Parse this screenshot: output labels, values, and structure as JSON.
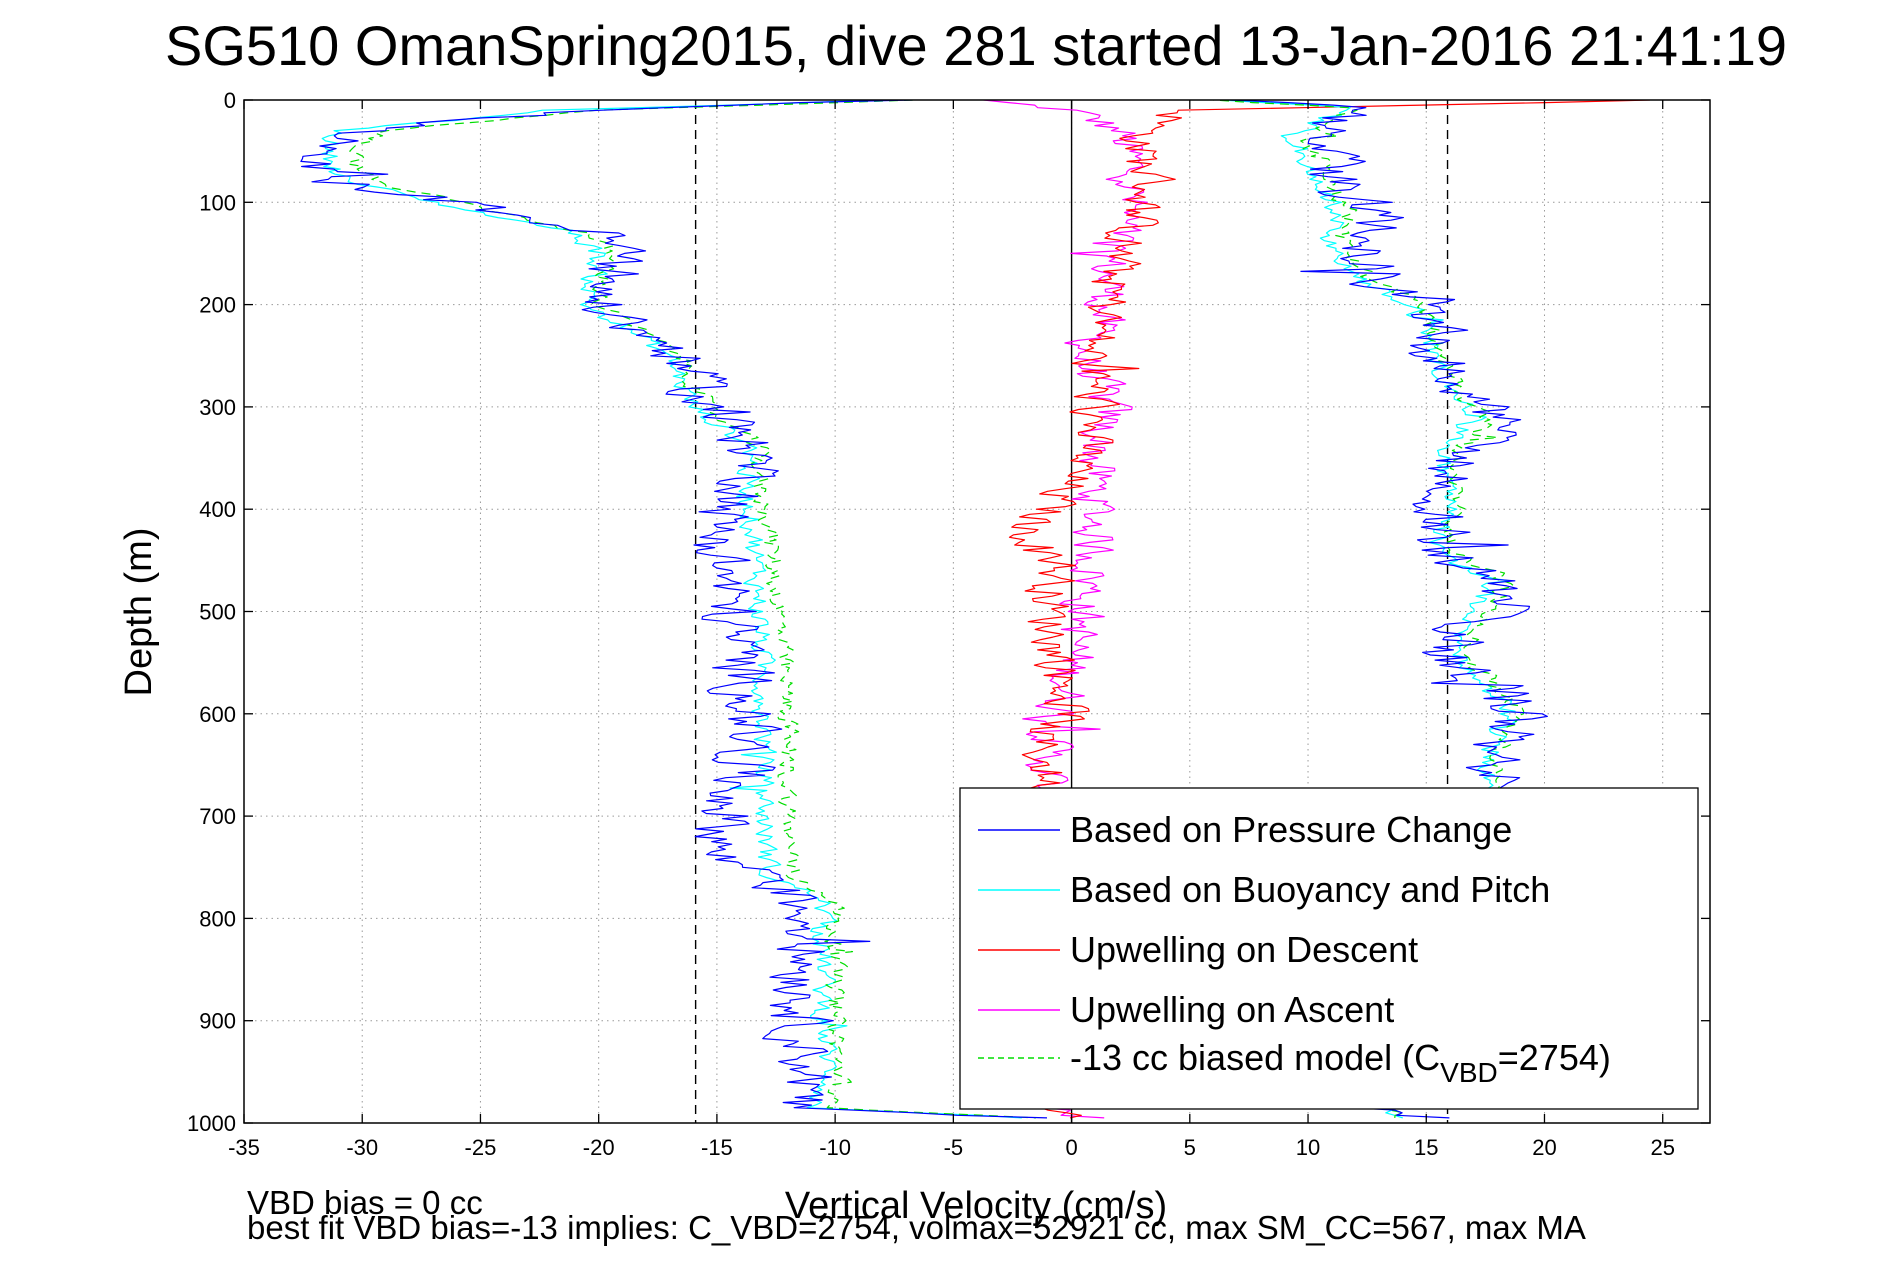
{
  "chart_data": {
    "type": "line",
    "title": "SG510 OmanSpring2015, dive 281 started 13-Jan-2016 21:41:19",
    "xlabel": "Vertical Velocity (cm/s)",
    "ylabel": "Depth (m)",
    "xlim": [
      -35,
      27
    ],
    "ylim": [
      1000,
      0
    ],
    "y_reversed": true,
    "grid": true,
    "xticks": [
      "-35",
      "-30",
      "-25",
      "-20",
      "-15",
      "-10",
      "-5",
      "0",
      "5",
      "10",
      "15",
      "20",
      "25"
    ],
    "yticks": [
      "0",
      "100",
      "200",
      "300",
      "400",
      "500",
      "600",
      "700",
      "800",
      "900",
      "1000"
    ],
    "reference_lines": [
      {
        "kind": "vertical",
        "x": -15.9,
        "style": "dashed",
        "color": "#000000"
      },
      {
        "kind": "vertical",
        "x": 0,
        "style": "solid",
        "color": "#000000"
      },
      {
        "kind": "vertical",
        "x": 15.9,
        "style": "dashed",
        "color": "#000000"
      }
    ],
    "legend_position": "bottom-right",
    "legend": [
      {
        "label": "Based on Pressure Change",
        "color": "#0000ff",
        "style": "solid"
      },
      {
        "label": "Based on Buoyancy and Pitch",
        "color": "#00ffff",
        "style": "solid"
      },
      {
        "label": "Upwelling on Descent",
        "color": "#ff0000",
        "style": "solid"
      },
      {
        "label": "Upwelling on Ascent",
        "color": "#ff00ff",
        "style": "solid"
      },
      {
        "label_prefix": "-13 cc biased model (C",
        "label_sub": "VBD",
        "label_suffix": "=2754)",
        "color": "#00dd00",
        "style": "dashed"
      }
    ],
    "series": [
      {
        "name": "Based on Pressure Change",
        "color": "#0000ff",
        "noise": 1.2,
        "descent": [
          [
            0,
            -7
          ],
          [
            10,
            -21
          ],
          [
            30,
            -30
          ],
          [
            50,
            -32.5
          ],
          [
            70,
            -32
          ],
          [
            80,
            -31
          ],
          [
            100,
            -26
          ],
          [
            130,
            -20
          ],
          [
            150,
            -19
          ],
          [
            200,
            -20
          ],
          [
            250,
            -16.5
          ],
          [
            300,
            -15.5
          ],
          [
            340,
            -13.3
          ],
          [
            380,
            -13.5
          ],
          [
            410,
            -15
          ],
          [
            500,
            -14.5
          ],
          [
            600,
            -13.5
          ],
          [
            700,
            -14.5
          ],
          [
            740,
            -15
          ],
          [
            760,
            -12
          ],
          [
            780,
            -11.8
          ],
          [
            800,
            -11
          ],
          [
            900,
            -11.5
          ],
          [
            960,
            -11
          ],
          [
            985,
            -12
          ],
          [
            995,
            -2
          ]
        ],
        "ascent": [
          [
            995,
            15
          ],
          [
            985,
            13
          ],
          [
            950,
            17.5
          ],
          [
            900,
            18
          ],
          [
            800,
            18.5
          ],
          [
            700,
            18
          ],
          [
            640,
            18
          ],
          [
            600,
            19
          ],
          [
            560,
            17
          ],
          [
            540,
            16
          ],
          [
            500,
            17.5
          ],
          [
            470,
            18.5
          ],
          [
            440,
            15.5
          ],
          [
            400,
            15.8
          ],
          [
            350,
            16
          ],
          [
            310,
            18.5
          ],
          [
            285,
            16.5
          ],
          [
            250,
            15.5
          ],
          [
            200,
            15.5
          ],
          [
            180,
            13
          ],
          [
            150,
            12
          ],
          [
            100,
            13
          ],
          [
            80,
            11
          ],
          [
            60,
            11
          ],
          [
            40,
            10
          ],
          [
            20,
            11
          ],
          [
            8,
            13
          ],
          [
            0,
            6
          ]
        ]
      },
      {
        "name": "Based on Buoyancy and Pitch",
        "color": "#00ffff",
        "noise": 0.45,
        "descent": [
          [
            0,
            -8
          ],
          [
            10,
            -22
          ],
          [
            30,
            -31
          ],
          [
            50,
            -31.5
          ],
          [
            70,
            -31
          ],
          [
            80,
            -30.5
          ],
          [
            100,
            -27
          ],
          [
            130,
            -21
          ],
          [
            150,
            -20
          ],
          [
            200,
            -20.5
          ],
          [
            250,
            -17
          ],
          [
            300,
            -16
          ],
          [
            340,
            -13.5
          ],
          [
            380,
            -13.8
          ],
          [
            410,
            -13.5
          ],
          [
            500,
            -13.2
          ],
          [
            600,
            -13
          ],
          [
            700,
            -13
          ],
          [
            760,
            -12.8
          ],
          [
            780,
            -10.5
          ],
          [
            800,
            -10.5
          ],
          [
            900,
            -10.5
          ],
          [
            960,
            -10.2
          ],
          [
            985,
            -11
          ],
          [
            995,
            -2
          ]
        ],
        "ascent": [
          [
            995,
            14
          ],
          [
            985,
            13.5
          ],
          [
            950,
            17.5
          ],
          [
            900,
            17.5
          ],
          [
            800,
            17.5
          ],
          [
            700,
            17.8
          ],
          [
            640,
            17.5
          ],
          [
            600,
            18.5
          ],
          [
            560,
            17
          ],
          [
            540,
            16
          ],
          [
            500,
            17
          ],
          [
            470,
            18
          ],
          [
            440,
            15.5
          ],
          [
            400,
            15.8
          ],
          [
            350,
            15.8
          ],
          [
            310,
            17
          ],
          [
            285,
            16
          ],
          [
            250,
            15.3
          ],
          [
            200,
            14.5
          ],
          [
            180,
            12.5
          ],
          [
            150,
            11
          ],
          [
            100,
            11
          ],
          [
            80,
            10.5
          ],
          [
            60,
            10
          ],
          [
            40,
            9.5
          ],
          [
            20,
            10.5
          ],
          [
            8,
            12
          ],
          [
            0,
            6
          ]
        ]
      },
      {
        "name": "-13 cc biased model",
        "color": "#00dd00",
        "dash": "9,6",
        "noise": 0.4,
        "descent": [
          [
            0,
            -7
          ],
          [
            10,
            -20
          ],
          [
            30,
            -29
          ],
          [
            50,
            -30.5
          ],
          [
            70,
            -30
          ],
          [
            80,
            -29.5
          ],
          [
            100,
            -26
          ],
          [
            130,
            -20.5
          ],
          [
            150,
            -19.5
          ],
          [
            200,
            -20
          ],
          [
            250,
            -16.5
          ],
          [
            300,
            -15.5
          ],
          [
            340,
            -13.2
          ],
          [
            380,
            -13.2
          ],
          [
            410,
            -12.8
          ],
          [
            500,
            -12.4
          ],
          [
            600,
            -12
          ],
          [
            700,
            -12
          ],
          [
            760,
            -11.8
          ],
          [
            780,
            -10
          ],
          [
            800,
            -10
          ],
          [
            900,
            -10
          ],
          [
            960,
            -9.8
          ],
          [
            985,
            -10.5
          ],
          [
            995,
            -1
          ]
        ],
        "ascent": [
          [
            995,
            14
          ],
          [
            985,
            13.5
          ],
          [
            950,
            18
          ],
          [
            900,
            18
          ],
          [
            800,
            18
          ],
          [
            700,
            18.3
          ],
          [
            640,
            18
          ],
          [
            600,
            19
          ],
          [
            560,
            17.5
          ],
          [
            540,
            16.5
          ],
          [
            500,
            17.5
          ],
          [
            470,
            18.5
          ],
          [
            440,
            16
          ],
          [
            400,
            16.2
          ],
          [
            350,
            16.2
          ],
          [
            310,
            17.5
          ],
          [
            285,
            16.5
          ],
          [
            250,
            15.7
          ],
          [
            200,
            15
          ],
          [
            180,
            13
          ],
          [
            150,
            11.5
          ],
          [
            100,
            11.5
          ],
          [
            80,
            11
          ],
          [
            60,
            10.5
          ],
          [
            40,
            10
          ],
          [
            20,
            11
          ],
          [
            8,
            12.5
          ],
          [
            0,
            6
          ]
        ]
      },
      {
        "name": "Upwelling on Descent",
        "color": "#ff0000",
        "noise": 0.9,
        "descent": [
          [
            0,
            25
          ],
          [
            10,
            5
          ],
          [
            30,
            3
          ],
          [
            60,
            3
          ],
          [
            80,
            3.5
          ],
          [
            100,
            3
          ],
          [
            150,
            2
          ],
          [
            200,
            1.5
          ],
          [
            250,
            0.8
          ],
          [
            300,
            1
          ],
          [
            350,
            0.5
          ],
          [
            400,
            -1
          ],
          [
            420,
            -2
          ],
          [
            450,
            -0.5
          ],
          [
            500,
            -1
          ],
          [
            550,
            -0.5
          ],
          [
            600,
            0
          ],
          [
            620,
            -1.5
          ],
          [
            660,
            -1
          ],
          [
            700,
            -1
          ],
          [
            985,
            -1.5
          ],
          [
            995,
            0.5
          ]
        ]
      },
      {
        "name": "Upwelling on Ascent",
        "color": "#ff00ff",
        "noise": 0.9,
        "descent": [
          [
            0,
            -4
          ],
          [
            10,
            0
          ],
          [
            30,
            2
          ],
          [
            60,
            2.5
          ],
          [
            80,
            2.5
          ],
          [
            100,
            2.5
          ],
          [
            150,
            1.5
          ],
          [
            200,
            1.5
          ],
          [
            250,
            0.5
          ],
          [
            300,
            1.5
          ],
          [
            350,
            1
          ],
          [
            400,
            1
          ],
          [
            450,
            1
          ],
          [
            500,
            0.5
          ],
          [
            550,
            0
          ],
          [
            600,
            -0.5
          ],
          [
            640,
            -1
          ],
          [
            700,
            -1
          ],
          [
            985,
            -1
          ],
          [
            995,
            1
          ]
        ]
      }
    ],
    "footer_text": [
      "VBD bias = 0 cc",
      "best fit VBD bias=-13 implies: C_VBD=2754, volmax=52921 cc, max SM_CC=567, max MA"
    ]
  }
}
